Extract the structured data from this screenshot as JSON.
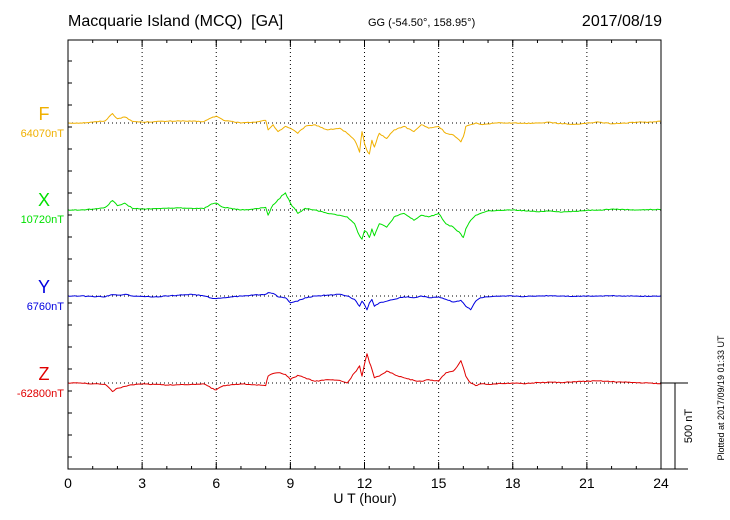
{
  "chart_data": {
    "type": "line",
    "title": "Macquarie Island (MCQ)  [GA]",
    "coords": "GG (-54.50°, 158.95°)",
    "date": "2017/08/19",
    "xlabel": "U T (hour)",
    "xlim": [
      0,
      24
    ],
    "xticks": [
      "0",
      "3",
      "6",
      "9",
      "12",
      "15",
      "18",
      "21",
      "24"
    ],
    "scale_label": "500 nT",
    "plotted_note": "Plotted at 2017/09/19 01:33 UT",
    "grid": true,
    "x": [
      0,
      0.5,
      1,
      1.5,
      1.8,
      2,
      2.3,
      2.6,
      3,
      3.5,
      4,
      4.5,
      5,
      5.5,
      5.8,
      6,
      6.3,
      6.6,
      7,
      7.5,
      8,
      8.1,
      8.3,
      8.5,
      8.8,
      9,
      9.3,
      9.6,
      10,
      10.5,
      11,
      11.3,
      11.6,
      11.8,
      11.9,
      12,
      12.1,
      12.2,
      12.3,
      12.4,
      12.6,
      12.9,
      13.2,
      13.6,
      14,
      14.3,
      14.6,
      15,
      15.3,
      15.6,
      15.9,
      16,
      16.1,
      16.3,
      16.5,
      16.7,
      17,
      17.5,
      18,
      18.5,
      19,
      19.5,
      20,
      20.5,
      21,
      21.5,
      22,
      22.5,
      23,
      23.5,
      24
    ],
    "series": [
      {
        "name": "F",
        "baseline_label": "64070nT",
        "color": "#f0b000",
        "values": [
          0,
          0,
          5,
          12,
          55,
          25,
          35,
          10,
          5,
          8,
          10,
          12,
          10,
          8,
          30,
          40,
          15,
          10,
          0,
          5,
          15,
          -40,
          -10,
          -50,
          -20,
          -30,
          -60,
          -20,
          -10,
          -40,
          -30,
          -60,
          -100,
          -170,
          -50,
          -120,
          -160,
          -180,
          -100,
          -140,
          -60,
          -90,
          -40,
          -20,
          -50,
          -10,
          -30,
          -20,
          -60,
          -70,
          -110,
          -80,
          -20,
          -10,
          0,
          -8,
          -5,
          2,
          0,
          -2,
          0,
          5,
          -5,
          -8,
          0,
          5,
          -5,
          0,
          5,
          5,
          10
        ]
      },
      {
        "name": "X",
        "baseline_label": "10720nT",
        "color": "#00e000",
        "values": [
          0,
          0,
          5,
          15,
          55,
          25,
          40,
          10,
          5,
          8,
          10,
          12,
          10,
          8,
          35,
          40,
          15,
          10,
          0,
          5,
          15,
          -30,
          30,
          60,
          100,
          40,
          -20,
          10,
          0,
          -20,
          -30,
          -40,
          -80,
          -150,
          -170,
          -120,
          -130,
          -160,
          -110,
          -150,
          -80,
          -100,
          -40,
          -20,
          -60,
          -30,
          -40,
          -20,
          -80,
          -100,
          -140,
          -160,
          -110,
          -60,
          -30,
          -20,
          -5,
          -3,
          0,
          -5,
          -10,
          -5,
          -12,
          -8,
          -2,
          0,
          5,
          3,
          0,
          2,
          3
        ]
      },
      {
        "name": "Y",
        "baseline_label": "6760nT",
        "color": "#0000e0",
        "values": [
          0,
          0,
          -3,
          -5,
          8,
          5,
          10,
          0,
          -2,
          -5,
          0,
          5,
          10,
          0,
          -12,
          -15,
          -10,
          -5,
          0,
          5,
          10,
          20,
          15,
          -5,
          -10,
          -40,
          -30,
          -10,
          0,
          5,
          10,
          0,
          -20,
          -60,
          -30,
          -50,
          -80,
          -40,
          -20,
          -60,
          -40,
          -30,
          -20,
          -5,
          -10,
          0,
          -10,
          -5,
          -20,
          -35,
          -25,
          -40,
          -60,
          -80,
          -30,
          -10,
          -5,
          -2,
          0,
          -3,
          0,
          2,
          0,
          -2,
          0,
          0,
          2,
          0,
          0,
          -2,
          0
        ]
      },
      {
        "name": "Z",
        "baseline_label": "-62800nT",
        "color": "#e00000",
        "values": [
          0,
          0,
          -5,
          -8,
          -50,
          -30,
          -20,
          -10,
          -5,
          -8,
          -12,
          -10,
          -8,
          -5,
          -30,
          -40,
          -15,
          -10,
          -5,
          -10,
          -15,
          40,
          55,
          60,
          50,
          20,
          45,
          30,
          10,
          20,
          15,
          0,
          60,
          100,
          40,
          110,
          170,
          120,
          80,
          30,
          40,
          70,
          50,
          30,
          15,
          10,
          20,
          10,
          60,
          70,
          130,
          90,
          40,
          0,
          -15,
          -5,
          -8,
          -3,
          0,
          -5,
          3,
          5,
          2,
          8,
          10,
          12,
          8,
          5,
          2,
          0,
          -5
        ]
      }
    ]
  }
}
